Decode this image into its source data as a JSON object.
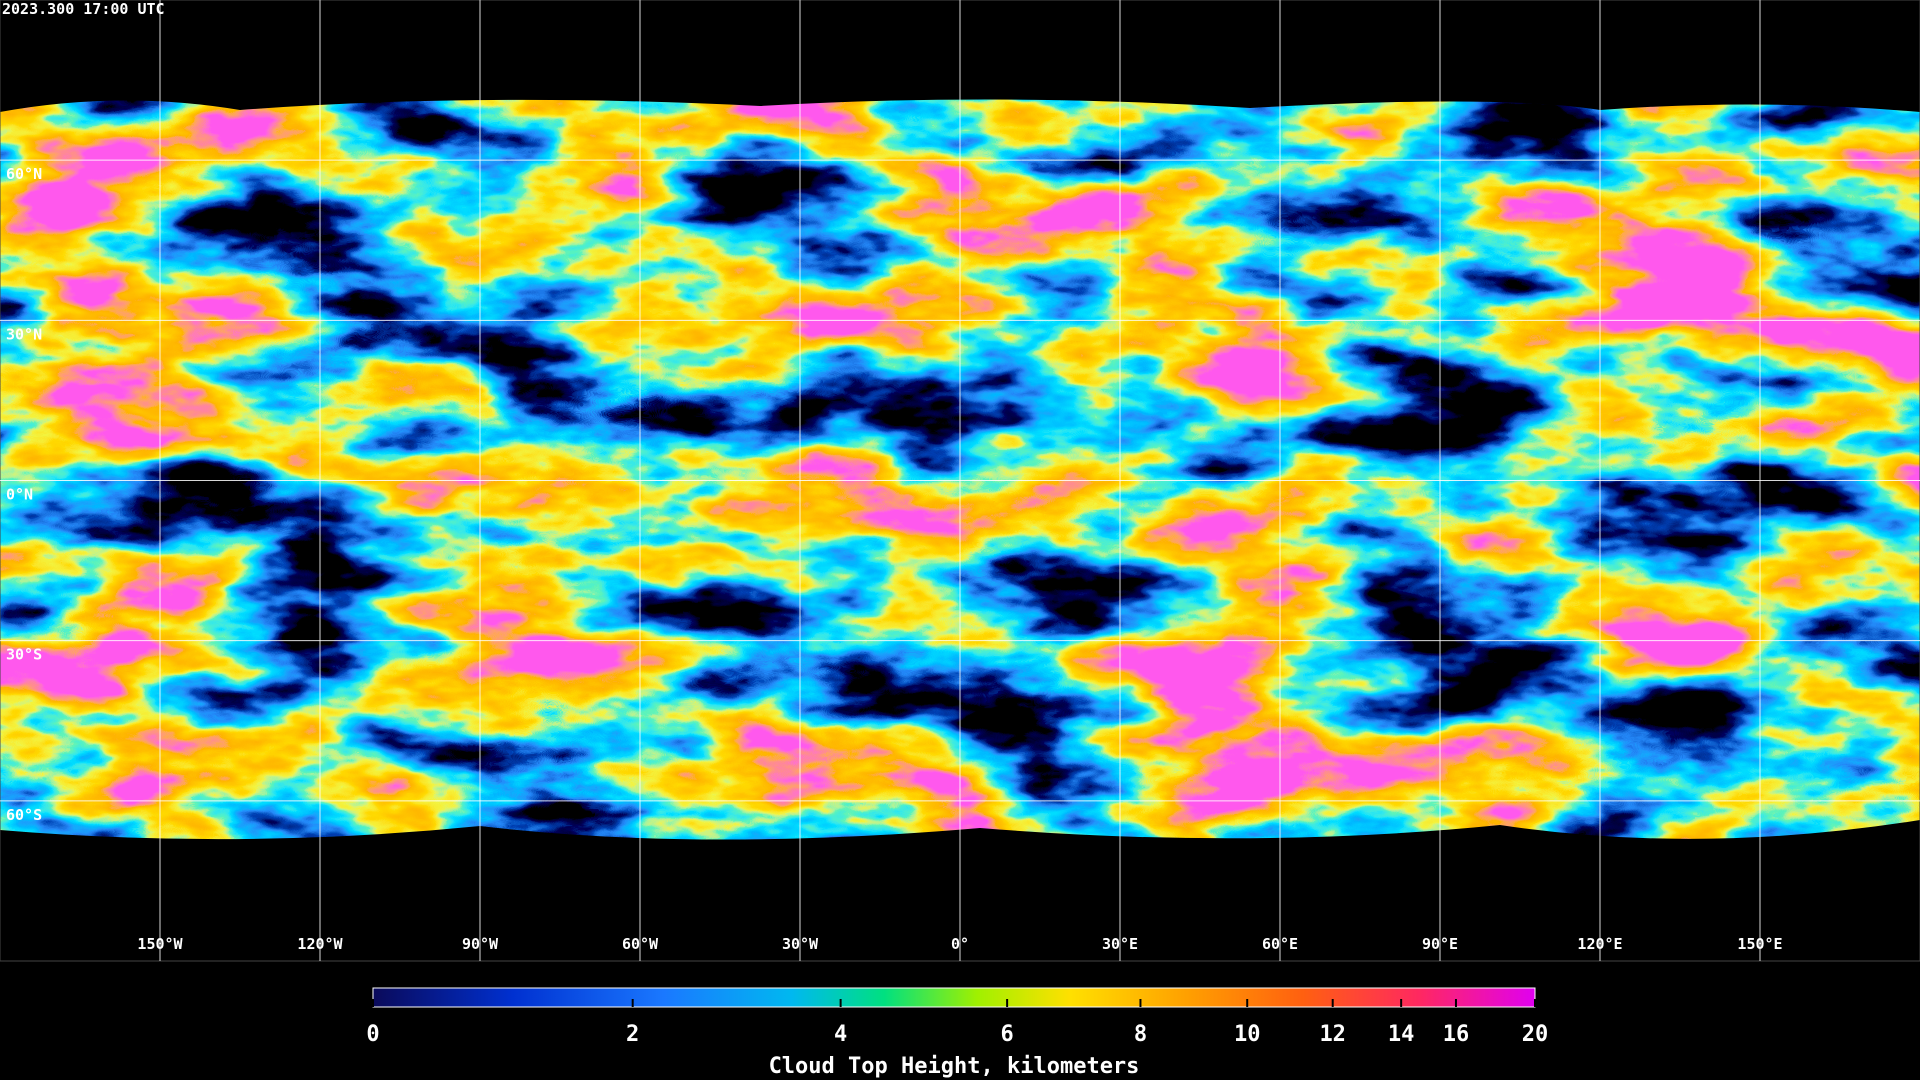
{
  "map": {
    "title": "2023.300 17:00 UTC",
    "xlim": [
      -180,
      180
    ],
    "ylim": [
      -90,
      90
    ],
    "xticks": [
      {
        "value": -150,
        "label": "150°W"
      },
      {
        "value": -120,
        "label": "120°W"
      },
      {
        "value": -90,
        "label": "90°W"
      },
      {
        "value": -60,
        "label": "60°W"
      },
      {
        "value": -30,
        "label": "30°W"
      },
      {
        "value": 0,
        "label": "0°"
      },
      {
        "value": 30,
        "label": "30°E"
      },
      {
        "value": 60,
        "label": "60°E"
      },
      {
        "value": 90,
        "label": "90°E"
      },
      {
        "value": 120,
        "label": "120°E"
      },
      {
        "value": 150,
        "label": "150°E"
      }
    ],
    "yticks": [
      {
        "value": 60,
        "label": "60°N"
      },
      {
        "value": 30,
        "label": "30°N"
      },
      {
        "value": 0,
        "label": "0°N"
      },
      {
        "value": -30,
        "label": "30°S"
      },
      {
        "value": -60,
        "label": "60°S"
      }
    ]
  },
  "colorbar": {
    "label": "Cloud Top Height, kilometers",
    "lim": [
      0,
      20
    ],
    "ticks": [
      0,
      2,
      4,
      6,
      8,
      10,
      12,
      14,
      16,
      20
    ]
  }
}
